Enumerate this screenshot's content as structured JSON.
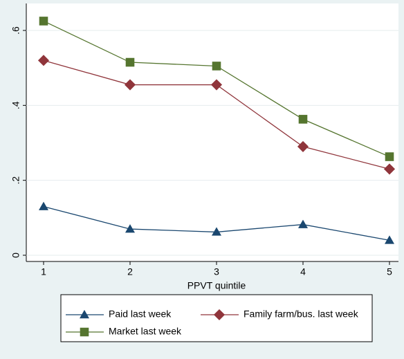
{
  "chart_data": {
    "type": "line",
    "x": [
      1,
      2,
      3,
      4,
      5
    ],
    "xlim": [
      1,
      5
    ],
    "xticks": [
      1,
      2,
      3,
      4,
      5
    ],
    "ylim": [
      0,
      0.6
    ],
    "yticks": [
      0,
      {
        "value": 0.2,
        "label": ".2"
      },
      {
        "value": 0.4,
        "label": ".4"
      },
      {
        "value": 0.6,
        "label": ".6"
      }
    ],
    "x_label": "PPVT quintile",
    "grid": true,
    "series": [
      {
        "name": "Paid last week",
        "color": "#1a476f",
        "marker": "triangle",
        "values": [
          0.13,
          0.07,
          0.062,
          0.082,
          0.04
        ]
      },
      {
        "name": "Family farm/bus. last week",
        "color": "#90353b",
        "marker": "diamond",
        "values": [
          0.52,
          0.455,
          0.455,
          0.29,
          0.23
        ]
      },
      {
        "name": "Market last week",
        "color": "#55752f",
        "marker": "square",
        "values": [
          0.625,
          0.515,
          0.505,
          0.363,
          0.263
        ]
      }
    ]
  }
}
